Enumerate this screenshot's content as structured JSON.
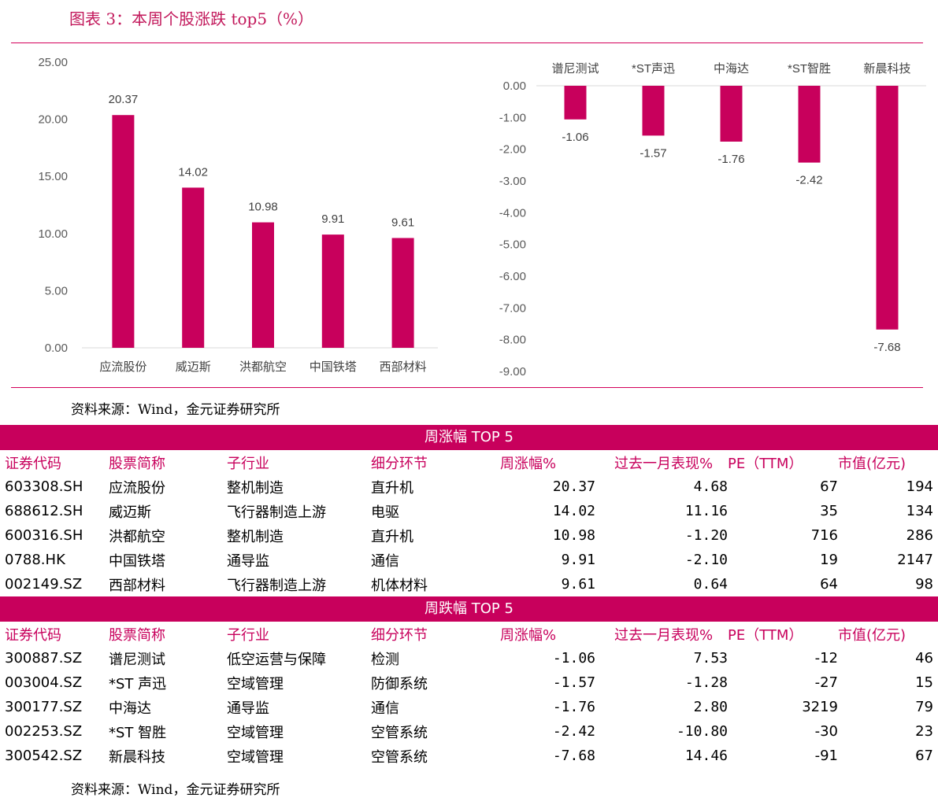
{
  "figure_title": "图表 3：本周个股涨跌 top5（%）",
  "source_top": "资料来源：Wind，金元证券研究所",
  "source_bottom": "资料来源：Wind，金元证券研究所",
  "colors": {
    "accent": "#c8005c",
    "rule": "#d4005a"
  },
  "chart_data": [
    {
      "type": "bar",
      "categories": [
        "应流股份",
        "威迈斯",
        "洪都航空",
        "中国铁塔",
        "西部材料"
      ],
      "values": [
        20.37,
        14.02,
        10.98,
        9.91,
        9.61
      ],
      "value_labels": [
        "20.37",
        "14.02",
        "10.98",
        "9.91",
        "9.61"
      ],
      "ylim": [
        0,
        25
      ],
      "yticks": [
        "25.00",
        "20.00",
        "15.00",
        "10.00",
        "5.00",
        "0.00"
      ],
      "grid": false,
      "color": "#c8005c"
    },
    {
      "type": "bar",
      "categories": [
        "谱尼测试",
        "*ST声迅",
        "中海达",
        "*ST智胜",
        "新晨科技"
      ],
      "values": [
        -1.06,
        -1.57,
        -1.76,
        -2.42,
        -7.68
      ],
      "value_labels": [
        "-1.06",
        "-1.57",
        "-1.76",
        "-2.42",
        "-7.68"
      ],
      "ylim": [
        -9,
        0
      ],
      "yticks": [
        "0.00",
        "-1.00",
        "-2.00",
        "-3.00",
        "-4.00",
        "-5.00",
        "-6.00",
        "-7.00",
        "-8.00",
        "-9.00"
      ],
      "grid": false,
      "color": "#c8005c"
    }
  ],
  "tables": [
    {
      "band": "周涨幅 TOP 5",
      "headers": [
        "证券代码",
        "股票简称",
        "子行业",
        "细分环节",
        "周涨幅%",
        "过去一月表现%",
        "PE（TTM）",
        "市值(亿元)"
      ],
      "rows": [
        [
          "603308.SH",
          "应流股份",
          "整机制造",
          "直升机",
          "20.37",
          "4.68",
          "67",
          "194"
        ],
        [
          "688612.SH",
          "威迈斯",
          "飞行器制造上游",
          "电驱",
          "14.02",
          "11.16",
          "35",
          "134"
        ],
        [
          "600316.SH",
          "洪都航空",
          "整机制造",
          "直升机",
          "10.98",
          "-1.20",
          "716",
          "286"
        ],
        [
          "0788.HK",
          "中国铁塔",
          "通导监",
          "通信",
          "9.91",
          "-2.10",
          "19",
          "2147"
        ],
        [
          "002149.SZ",
          "西部材料",
          "飞行器制造上游",
          "机体材料",
          "9.61",
          "0.64",
          "64",
          "98"
        ]
      ]
    },
    {
      "band": "周跌幅 TOP 5",
      "headers": [
        "证券代码",
        "股票简称",
        "子行业",
        "细分环节",
        "周涨幅%",
        "过去一月表现%",
        "PE（TTM）",
        "市值(亿元)"
      ],
      "rows": [
        [
          "300887.SZ",
          "谱尼测试",
          "低空运营与保障",
          "检测",
          "-1.06",
          "7.53",
          "-12",
          "46"
        ],
        [
          "003004.SZ",
          "*ST 声迅",
          "空域管理",
          "防御系统",
          "-1.57",
          "-1.28",
          "-27",
          "15"
        ],
        [
          "300177.SZ",
          "中海达",
          "通导监",
          "通信",
          "-1.76",
          "2.80",
          "3219",
          "79"
        ],
        [
          "002253.SZ",
          "*ST 智胜",
          "空域管理",
          "空管系统",
          "-2.42",
          "-10.80",
          "-30",
          "23"
        ],
        [
          "300542.SZ",
          "新晨科技",
          "空域管理",
          "空管系统",
          "-7.68",
          "14.46",
          "-91",
          "67"
        ]
      ]
    }
  ]
}
